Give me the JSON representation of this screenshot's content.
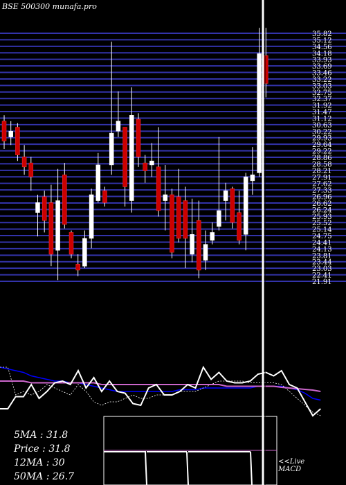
{
  "header": {
    "title": "BSE 500300  munafa.pro"
  },
  "stats": {
    "ma5_label": "5MA : 31.8",
    "price_label": "Price  : 31.8",
    "ma12_label": "12MA : 30",
    "ma50_label": "50MA : 26.7"
  },
  "live_label": [
    "<<Live",
    "MACD"
  ],
  "colors": {
    "background": "#000000",
    "gridline": "#3333aa",
    "bull_candle": "#ffffff",
    "bear_candle": "#cc0000",
    "wick": "#ffffff",
    "price_line": "#ffffff",
    "ma_blue": "#0000ff",
    "ma_pink": "#cc66cc",
    "cursor": "#ffffff"
  },
  "chart_data": {
    "type": "candlestick",
    "y_ticks": [
      "35.82",
      "35.12",
      "34.56",
      "34.18",
      "33.93",
      "33.69",
      "33.46",
      "33.22",
      "33.03",
      "32.75",
      "32.37",
      "31.92",
      "31.47",
      "31.12",
      "30.63",
      "30.22",
      "29.93",
      "29.64",
      "29.22",
      "28.86",
      "28.58",
      "28.21",
      "27.91",
      "27.62",
      "27.33",
      "26.96",
      "26.62",
      "26.24",
      "25.93",
      "25.52",
      "25.14",
      "24.75",
      "24.41",
      "24.13",
      "23.81",
      "23.44",
      "23.03",
      "22.41",
      "21.91"
    ],
    "candles": [
      {
        "o": 29.9,
        "c": 28.9,
        "h": 30.2,
        "l": 28.5
      },
      {
        "o": 29.1,
        "c": 29.4,
        "h": 29.9,
        "l": 28.7
      },
      {
        "o": 29.6,
        "c": 28.2,
        "h": 29.8,
        "l": 27.9
      },
      {
        "o": 28.1,
        "c": 27.6,
        "h": 28.7,
        "l": 27.2
      },
      {
        "o": 27.8,
        "c": 27.1,
        "h": 28.1,
        "l": 26.4
      },
      {
        "o": 25.3,
        "c": 25.8,
        "h": 26.2,
        "l": 24.1
      },
      {
        "o": 26.1,
        "c": 24.9,
        "h": 26.4,
        "l": 24.3
      },
      {
        "o": 25.8,
        "c": 23.2,
        "h": 26.7,
        "l": 22.6
      },
      {
        "o": 23.4,
        "c": 25.9,
        "h": 27.5,
        "l": 21.9
      },
      {
        "o": 27.2,
        "c": 24.7,
        "h": 27.8,
        "l": 24.5
      },
      {
        "o": 24.3,
        "c": 23.2,
        "h": 24.4,
        "l": 23.0
      },
      {
        "o": 22.7,
        "c": 22.4,
        "h": 23.2,
        "l": 22.1
      },
      {
        "o": 22.6,
        "c": 24.0,
        "h": 24.4,
        "l": 22.5
      },
      {
        "o": 24.0,
        "c": 26.2,
        "h": 26.5,
        "l": 23.5
      },
      {
        "o": 25.9,
        "c": 27.7,
        "h": 28.3,
        "l": 25.8
      },
      {
        "o": 26.4,
        "c": 25.8,
        "h": 26.6,
        "l": 25.6
      },
      {
        "o": 27.7,
        "c": 29.3,
        "h": 33.9,
        "l": 27.2
      },
      {
        "o": 29.4,
        "c": 29.9,
        "h": 31.4,
        "l": 29.1
      },
      {
        "o": 29.6,
        "c": 26.6,
        "h": 29.6,
        "l": 25.6
      },
      {
        "o": 25.9,
        "c": 30.2,
        "h": 31.6,
        "l": 25.3
      },
      {
        "o": 30.0,
        "c": 28.1,
        "h": 30.3,
        "l": 27.6
      },
      {
        "o": 27.8,
        "c": 27.4,
        "h": 28.2,
        "l": 26.8
      },
      {
        "o": 27.7,
        "c": 27.9,
        "h": 28.8,
        "l": 27.1
      },
      {
        "o": 27.6,
        "c": 25.4,
        "h": 29.6,
        "l": 25.1
      },
      {
        "o": 25.9,
        "c": 26.2,
        "h": 27.7,
        "l": 24.4
      },
      {
        "o": 26.2,
        "c": 23.3,
        "h": 26.5,
        "l": 23.0
      },
      {
        "o": 26.1,
        "c": 24.0,
        "h": 27.5,
        "l": 23.8
      },
      {
        "o": 25.9,
        "c": 24.0,
        "h": 26.6,
        "l": 22.5
      },
      {
        "o": 23.2,
        "c": 24.2,
        "h": 26.0,
        "l": 22.8
      },
      {
        "o": 24.9,
        "c": 22.4,
        "h": 25.9,
        "l": 22.0
      },
      {
        "o": 22.9,
        "c": 23.7,
        "h": 24.4,
        "l": 22.4
      },
      {
        "o": 23.9,
        "c": 24.3,
        "h": 24.8,
        "l": 23.7
      },
      {
        "o": 24.6,
        "c": 25.4,
        "h": 29.1,
        "l": 24.4
      },
      {
        "o": 25.9,
        "c": 26.4,
        "h": 26.8,
        "l": 24.9
      },
      {
        "o": 26.5,
        "c": 24.8,
        "h": 26.6,
        "l": 24.5
      },
      {
        "o": 25.3,
        "c": 23.9,
        "h": 26.4,
        "l": 23.7
      },
      {
        "o": 24.2,
        "c": 27.1,
        "h": 27.3,
        "l": 23.4
      },
      {
        "o": 26.9,
        "c": 27.2,
        "h": 28.6,
        "l": 26.2
      },
      {
        "o": 27.3,
        "c": 33.3,
        "h": 34.6,
        "l": 27.1
      },
      {
        "o": 33.2,
        "c": 31.8,
        "h": 34.6,
        "l": 31.1
      }
    ],
    "price_panel": [
      0.1,
      0.1,
      0.45,
      0.45,
      0.8,
      0.4,
      0.6,
      0.85,
      0.9,
      0.8,
      1.2,
      0.7,
      1.0,
      0.6,
      0.9,
      0.6,
      0.55,
      0.25,
      0.2,
      0.7,
      0.8,
      0.5,
      0.5,
      0.6,
      0.8,
      0.7,
      1.3,
      0.95,
      1.15,
      0.9,
      0.85,
      0.85,
      0.9,
      1.1,
      1.15,
      1.05,
      1.2,
      0.8,
      0.7,
      0.3,
      -0.1,
      0.1
    ],
    "ma_fast": [
      1.3,
      1.3,
      0.5,
      0.6,
      0.5,
      0.6,
      0.8,
      0.7,
      0.6,
      0.5,
      0.8,
      0.6,
      0.3,
      0.2,
      0.3,
      0.3,
      0.4,
      0.5,
      0.4,
      0.4,
      0.5,
      0.5,
      0.5,
      0.6,
      0.6,
      0.6,
      0.7,
      0.8,
      0.9,
      0.9,
      0.9,
      0.9,
      0.85,
      0.85,
      0.85,
      0.85,
      0.8,
      0.6,
      0.4,
      0.2,
      0.0,
      -0.1
    ],
    "ma_slow": [
      1.3,
      1.25,
      1.2,
      1.15,
      1.05,
      1.0,
      0.95,
      0.9,
      0.9,
      0.85,
      0.85,
      0.8,
      0.75,
      0.7,
      0.65,
      0.6,
      0.6,
      0.6,
      0.6,
      0.6,
      0.6,
      0.6,
      0.6,
      0.65,
      0.65,
      0.65,
      0.7,
      0.7,
      0.7,
      0.7,
      0.7,
      0.7,
      0.7,
      0.75,
      0.75,
      0.75,
      0.75,
      0.7,
      0.65,
      0.55,
      0.4,
      0.35
    ],
    "ma_trend": [
      0.9,
      0.9,
      0.9,
      0.9,
      0.85,
      0.85,
      0.85,
      0.85,
      0.85,
      0.85,
      0.85,
      0.85,
      0.85,
      0.8,
      0.8,
      0.8,
      0.8,
      0.8,
      0.8,
      0.8,
      0.8,
      0.8,
      0.8,
      0.8,
      0.8,
      0.8,
      0.8,
      0.8,
      0.8,
      0.75,
      0.75,
      0.75,
      0.75,
      0.75,
      0.75,
      0.75,
      0.72,
      0.7,
      0.68,
      0.66,
      0.64,
      0.6
    ],
    "ylim": [
      21.7,
      36.0
    ]
  }
}
